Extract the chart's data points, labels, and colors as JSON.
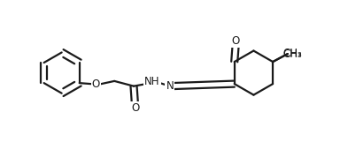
{
  "bg_color": "#ffffff",
  "line_color": "#1a1a1a",
  "line_width": 1.6,
  "text_color": "#1a1a1a",
  "font_size": 8.5,
  "figsize": [
    3.93,
    1.78
  ],
  "dpi": 100,
  "xlim": [
    0.0,
    1.0
  ],
  "ylim": [
    0.0,
    0.55
  ]
}
